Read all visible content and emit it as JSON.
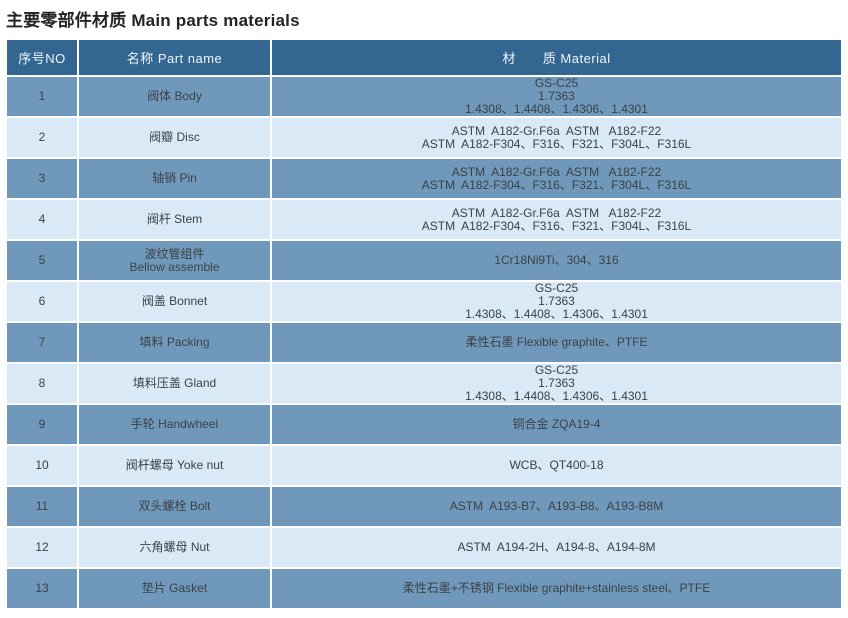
{
  "title": "主要零部件材质 Main parts materials",
  "colors": {
    "header_bg": "#336791",
    "header_text": "#eef5fb",
    "row_odd_bg": "#6f98ba",
    "row_even_bg": "#d9e9f6",
    "cell_text": "#3c4247"
  },
  "table": {
    "headers": {
      "no": "序号NO",
      "part": "名称 Part name",
      "material": "材　　质 Material"
    },
    "rows": [
      {
        "no": "1",
        "part": "阀体 Body",
        "material": "GS-C25\n1.7363\n1.4308、1.4408、1.4306、1.4301"
      },
      {
        "no": "2",
        "part": "阀瓣 Disc",
        "material": "ASTM  A182-Gr.F6a  ASTM   A182-F22\nASTM  A182-F304、F316、F321、F304L、F316L"
      },
      {
        "no": "3",
        "part": "轴销 Pin",
        "material": "ASTM  A182-Gr.F6a  ASTM   A182-F22\nASTM  A182-F304、F316、F321、F304L、F316L"
      },
      {
        "no": "4",
        "part": "阀杆 Stem",
        "material": "ASTM  A182-Gr.F6a  ASTM   A182-F22\nASTM  A182-F304、F316、F321、F304L、F316L"
      },
      {
        "no": "5",
        "part": "波纹管组件\nBellow assemble",
        "material": "1Cr18Ni9Ti、304、316"
      },
      {
        "no": "6",
        "part": "阀盖 Bonnet",
        "material": "GS-C25\n1.7363\n1.4308、1.4408、1.4306、1.4301"
      },
      {
        "no": "7",
        "part": "填料 Packing",
        "material": "柔性石墨 Flexible graphite、PTFE"
      },
      {
        "no": "8",
        "part": "填料压盖 Gland",
        "material": "GS-C25\n1.7363\n1.4308、1.4408、1.4306、1.4301"
      },
      {
        "no": "9",
        "part": "手轮 Handwheel",
        "material": "铜合金 ZQA19-4"
      },
      {
        "no": "10",
        "part": "阀杆螺母 Yoke nut",
        "material": "WCB、QT400-18"
      },
      {
        "no": "11",
        "part": "双头螺栓 Bolt",
        "material": "ASTM  A193-B7、A193-B8、A193-B8M"
      },
      {
        "no": "12",
        "part": "六角螺母 Nut",
        "material": "ASTM  A194-2H、A194-8、A194-8M"
      },
      {
        "no": "13",
        "part": "垫片 Gasket",
        "material": "柔性石墨+不锈钢 Flexible graphite+stainless steel、PTFE"
      }
    ]
  }
}
